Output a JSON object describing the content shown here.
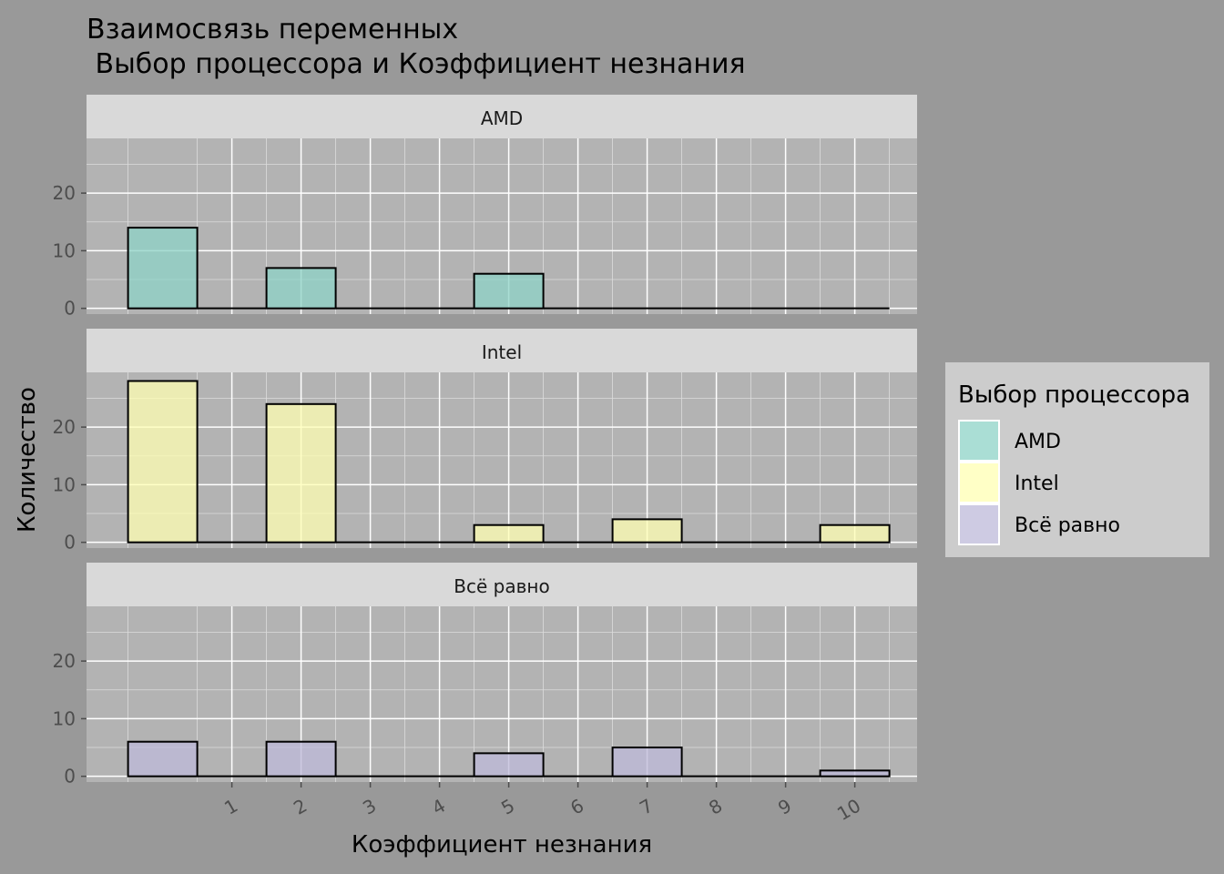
{
  "chart_data": {
    "type": "bar",
    "title_lines": [
      "Взаимосвязь переменных",
      " Выбор процессора и Коэффициент незнания"
    ],
    "xlabel": "Коэффициент незнания",
    "ylabel": "Количество",
    "x_ticks": [
      "1",
      "2",
      "3",
      "4",
      "5",
      "6",
      "7",
      "8",
      "9",
      "10"
    ],
    "y_ticks": [
      0,
      10,
      20
    ],
    "ylim": [
      -1,
      29.5
    ],
    "xlim": [
      -0.6,
      11.4
    ],
    "bins": [
      {
        "start": 0,
        "end": 1
      },
      {
        "start": 1,
        "end": 2
      },
      {
        "start": 2,
        "end": 3
      },
      {
        "start": 3,
        "end": 4
      },
      {
        "start": 4,
        "end": 5
      },
      {
        "start": 5,
        "end": 6
      },
      {
        "start": 6,
        "end": 7
      },
      {
        "start": 7,
        "end": 8
      },
      {
        "start": 8,
        "end": 9
      },
      {
        "start": 9,
        "end": 10
      },
      {
        "start": 10,
        "end": 11
      }
    ],
    "panels": [
      {
        "name": "AMD",
        "color": "#8dd3c7",
        "values": [
          14,
          0,
          7,
          0,
          0,
          6,
          0,
          0,
          0,
          0,
          0
        ]
      },
      {
        "name": "Intel",
        "color": "#ffffb3",
        "values": [
          28,
          0,
          24,
          0,
          0,
          3,
          0,
          4,
          0,
          0,
          3
        ]
      },
      {
        "name": "Всё равно",
        "color": "#bebada",
        "values": [
          6,
          0,
          6,
          0,
          0,
          4,
          0,
          5,
          0,
          0,
          1
        ]
      }
    ],
    "legend": {
      "title": "Выбор процессора",
      "position": "right",
      "items": [
        "AMD",
        "Intel",
        "Всё равно"
      ]
    },
    "grid": true
  }
}
